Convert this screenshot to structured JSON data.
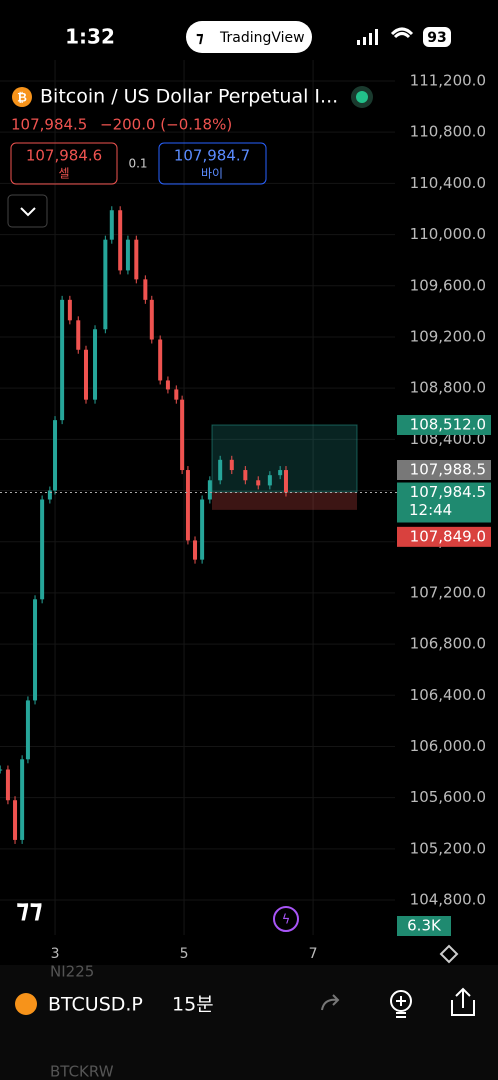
{
  "status_bar": {
    "time": "1:32",
    "app": "TradingView",
    "battery": "93"
  },
  "header": {
    "title": "Bitcoin / US Dollar Perpetual I...",
    "price": "107,984.5",
    "change": "−200.0 (−0.18%)",
    "sell_price": "107,984.6",
    "sell_label": "셀",
    "spread": "0.1",
    "buy_price": "107,984.7",
    "buy_label": "바이"
  },
  "chart_data": {
    "type": "candlestick",
    "x": [
      2.15,
      2.27,
      2.38,
      2.49,
      2.58,
      2.69,
      2.8,
      2.92,
      3.0,
      3.11,
      3.23,
      3.36,
      3.48,
      3.62,
      3.78,
      3.88,
      4.01,
      4.13,
      4.26,
      4.4,
      4.5,
      4.63,
      4.75,
      4.88,
      4.97,
      5.06,
      5.17,
      5.28,
      5.4,
      5.56,
      5.74,
      5.95,
      6.15,
      6.33,
      6.49,
      6.58
    ],
    "series": [
      {
        "name": "BTCUSD.P",
        "up_color": "#26a69a",
        "down_color": "#ef5350",
        "values": [
          105820,
          105580,
          105270,
          105900,
          106360,
          107150,
          107930,
          108000,
          108550,
          109490,
          109330,
          109100,
          108710,
          109260,
          109960,
          110190,
          109720,
          109960,
          109650,
          109490,
          109180,
          108860,
          108790,
          108710,
          108160,
          107610,
          107460,
          107930,
          108080,
          108240,
          108160,
          108080,
          108040,
          108120,
          108160,
          107984.5
        ]
      }
    ],
    "xlim": [
      2.147,
      8.27
    ],
    "xticks": [
      3,
      5,
      7
    ],
    "ylim": [
      104527,
      111364
    ],
    "yticks": [
      {
        "value": 104800,
        "label": "104,800.0"
      },
      {
        "value": 105200,
        "label": "105,200.0"
      },
      {
        "value": 105600,
        "label": "105,600.0"
      },
      {
        "value": 106000,
        "label": "106,000.0"
      },
      {
        "value": 106400,
        "label": "106,400.0"
      },
      {
        "value": 106800,
        "label": "106,800.0"
      },
      {
        "value": 107200,
        "label": "107,200.0"
      },
      {
        "value": 107600,
        "label": "107,600.0"
      },
      {
        "value": 108000,
        "label": "108,000.0"
      },
      {
        "value": 108400,
        "label": "108,400.0"
      },
      {
        "value": 108800,
        "label": "108,800.0"
      },
      {
        "value": 109200,
        "label": "109,200.0"
      },
      {
        "value": 109600,
        "label": "109,600.0"
      },
      {
        "value": 110000,
        "label": "110,000.0"
      },
      {
        "value": 110400,
        "label": "110,400.0"
      },
      {
        "value": 110800,
        "label": "110,800.0"
      },
      {
        "value": 111200,
        "label": "111,200.0"
      }
    ],
    "grid": true,
    "position": {
      "take_profit": {
        "value": 108512,
        "label": "108,512.0"
      },
      "entry": {
        "value": 107988.5,
        "label": "107,988.5"
      },
      "stop_loss": {
        "value": 107849,
        "label": "107,849.0"
      }
    },
    "last_price": {
      "value": 107984.5,
      "label": "107,984.5"
    },
    "countdown": "12:44",
    "volume_label": "6.3K"
  },
  "bottom_bar": {
    "symbol": "BTCUSD.P",
    "interval": "15분",
    "watch_above": "NI225",
    "watch_below": "BTCKRW"
  }
}
